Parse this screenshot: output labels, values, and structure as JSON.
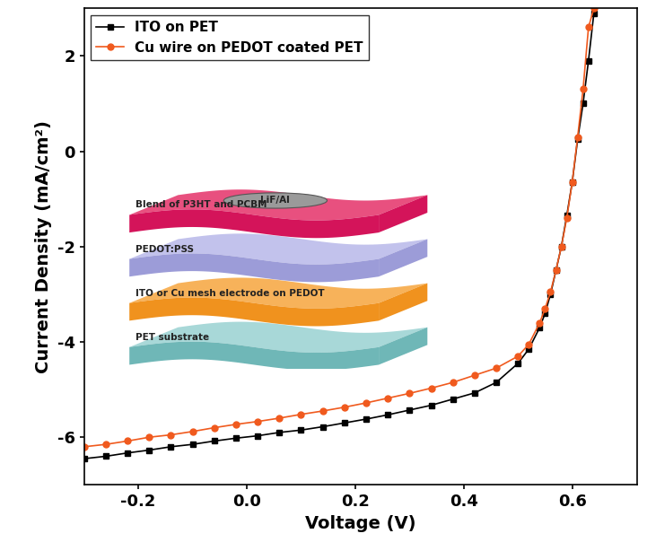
{
  "chart_data": {
    "type": "line",
    "xlabel": "Voltage (V)",
    "ylabel": "Current Density (mA/cm²)",
    "xlim": [
      -0.3,
      0.72
    ],
    "ylim": [
      -7,
      3
    ],
    "xticks": [
      {
        "value": -0.2,
        "label": "-0.2"
      },
      0.0,
      0.2,
      0.4,
      0.6
    ],
    "yticks": [
      -6,
      -4,
      -2,
      0,
      2
    ],
    "legend": "upper left",
    "x": [
      -0.3,
      -0.26,
      -0.22,
      -0.18,
      -0.14,
      -0.1,
      -0.06,
      -0.02,
      0.02,
      0.06,
      0.1,
      0.14,
      0.18,
      0.22,
      0.26,
      0.3,
      0.34,
      0.38,
      0.42,
      0.46,
      0.5,
      0.52,
      0.54,
      0.55,
      0.56,
      0.57,
      0.58,
      0.59,
      0.6,
      0.61,
      0.62,
      0.63,
      0.64
    ],
    "series": [
      {
        "name": "ITO on PET",
        "color": "#000000",
        "marker": "square",
        "values": [
          -6.45,
          -6.4,
          -6.33,
          -6.27,
          -6.2,
          -6.15,
          -6.08,
          -6.02,
          -5.97,
          -5.9,
          -5.85,
          -5.78,
          -5.7,
          -5.62,
          -5.53,
          -5.43,
          -5.33,
          -5.2,
          -5.07,
          -4.85,
          -4.45,
          -4.15,
          -3.7,
          -3.4,
          -3.0,
          -2.5,
          -2.0,
          -1.35,
          -0.65,
          0.25,
          1.0,
          1.9,
          2.9
        ]
      },
      {
        "name": "Cu wire on PEDOT coated PET",
        "color": "#f05a1e",
        "marker": "circle",
        "values": [
          -6.2,
          -6.15,
          -6.08,
          -6.0,
          -5.95,
          -5.88,
          -5.8,
          -5.73,
          -5.67,
          -5.6,
          -5.52,
          -5.45,
          -5.37,
          -5.28,
          -5.18,
          -5.08,
          -4.97,
          -4.85,
          -4.7,
          -4.55,
          -4.3,
          -4.05,
          -3.6,
          -3.3,
          -2.95,
          -2.5,
          -2.0,
          -1.4,
          -0.65,
          0.3,
          1.3,
          2.6,
          3.0
        ]
      }
    ],
    "annotations": [
      "LiF/Al",
      "Blend of P3HT and PCBM",
      "PEDOT:PSS",
      "ITO or Cu mesh electrode on PEDOT",
      "PET substrate"
    ]
  }
}
